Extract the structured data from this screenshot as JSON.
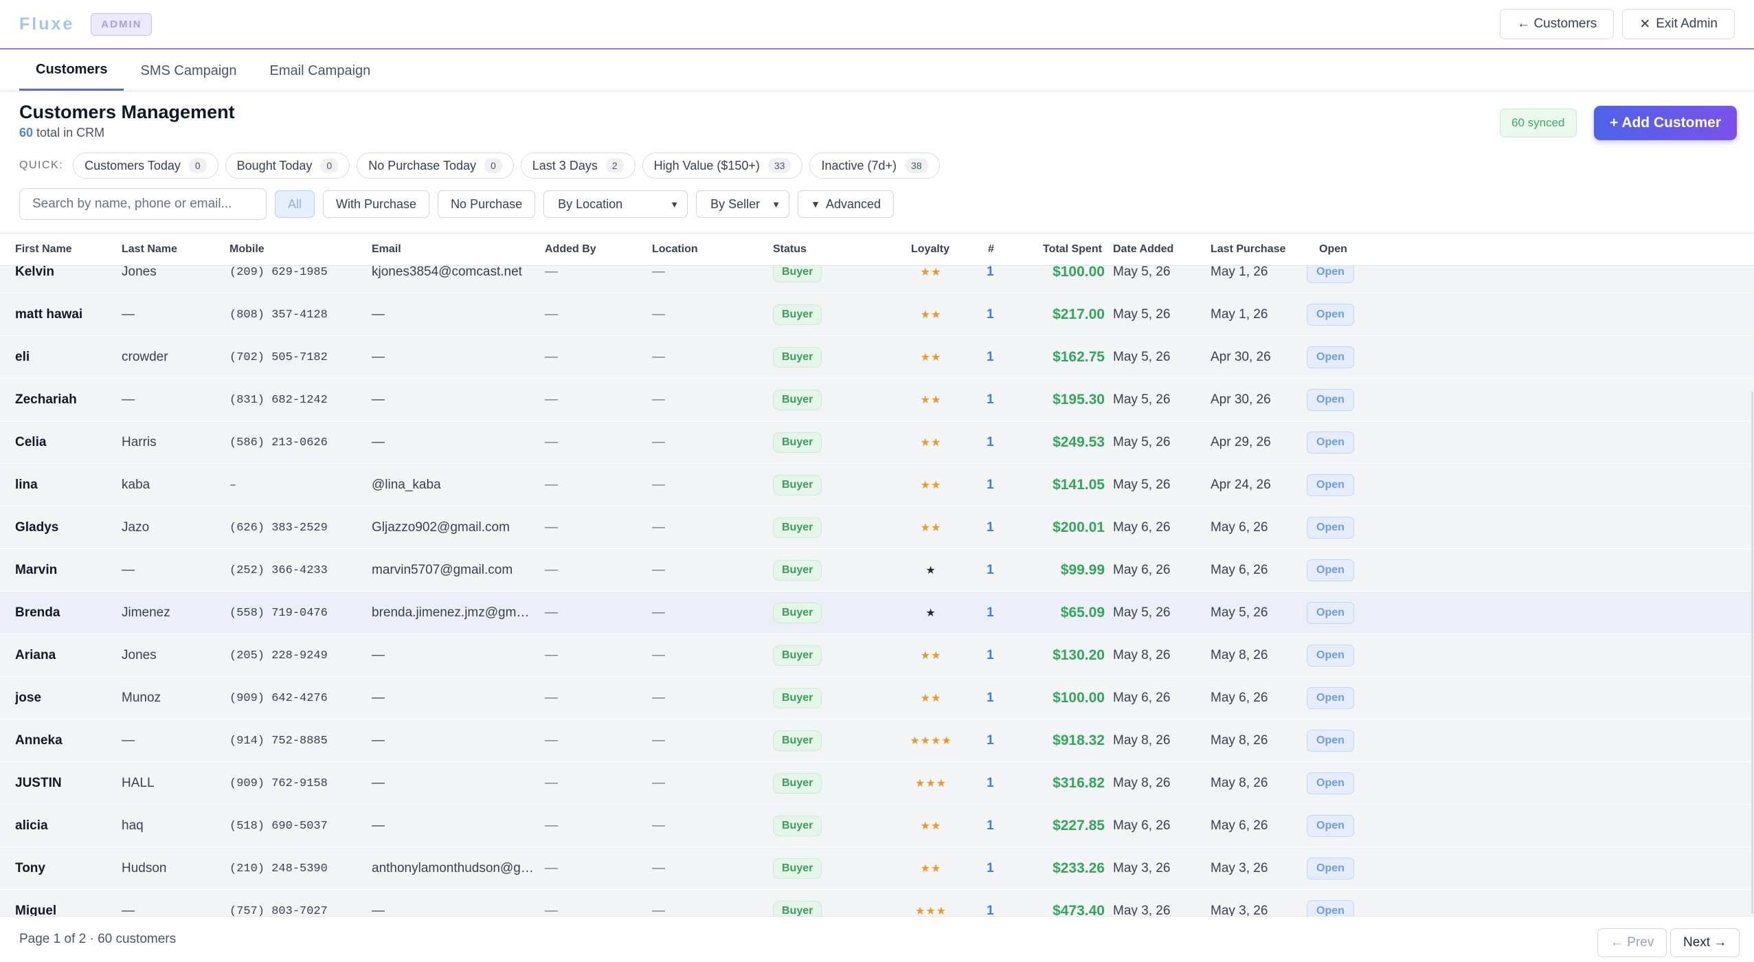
{
  "header": {
    "logo": "Fluxe",
    "badge": "ADMIN",
    "customers_btn": "← Customers",
    "exit_btn": "Exit Admin"
  },
  "tabs": [
    {
      "label": "Customers",
      "active": true
    },
    {
      "label": "SMS Campaign",
      "active": false
    },
    {
      "label": "Email Campaign",
      "active": false
    }
  ],
  "page": {
    "title": "Customers Management",
    "total_count": "60",
    "total_suffix": "total in CRM",
    "synced": "60 synced",
    "add_button": "+ Add Customer"
  },
  "quick": {
    "label": "QUICK:",
    "chips": [
      {
        "label": "Customers Today",
        "count": "0"
      },
      {
        "label": "Bought Today",
        "count": "0"
      },
      {
        "label": "No Purchase Today",
        "count": "0"
      },
      {
        "label": "Last 3 Days",
        "count": "2"
      },
      {
        "label": "High Value ($150+)",
        "count": "33"
      },
      {
        "label": "Inactive (7d+)",
        "count": "38"
      }
    ]
  },
  "filters": {
    "search_placeholder": "Search by name, phone or email...",
    "all": "All",
    "with_purchase": "With Purchase",
    "no_purchase": "No Purchase",
    "by_location": "By Location",
    "by_seller": "By Seller",
    "advanced": "Advanced"
  },
  "columns": {
    "first": "First Name",
    "last": "Last Name",
    "mobile": "Mobile",
    "email": "Email",
    "added_by": "Added By",
    "location": "Location",
    "status": "Status",
    "loyalty": "Loyalty",
    "num": "#",
    "total": "Total Spent",
    "date_added": "Date Added",
    "last_purchase": "Last Purchase",
    "open": "Open"
  },
  "rows": [
    {
      "first": "Kelvin",
      "last": "Jones",
      "mobile": "(209) 629-1985",
      "email": "kjones3854@comcast.net",
      "added_by": "—",
      "location": "—",
      "status": "Buyer",
      "loyalty": "★★",
      "num": "1",
      "total": "$100.00",
      "date_added": "May 5, 26",
      "last_purchase": "May 1, 26",
      "open": "Open"
    },
    {
      "first": "matt hawai",
      "last": "—",
      "mobile": "(808) 357-4128",
      "email": "—",
      "added_by": "—",
      "location": "—",
      "status": "Buyer",
      "loyalty": "★★",
      "num": "1",
      "total": "$217.00",
      "date_added": "May 5, 26",
      "last_purchase": "May 1, 26",
      "open": "Open"
    },
    {
      "first": "eli",
      "last": "crowder",
      "mobile": "(702) 505-7182",
      "email": "—",
      "added_by": "—",
      "location": "—",
      "status": "Buyer",
      "loyalty": "★★",
      "num": "1",
      "total": "$162.75",
      "date_added": "May 5, 26",
      "last_purchase": "Apr 30, 26",
      "open": "Open"
    },
    {
      "first": "Zechariah",
      "last": "—",
      "mobile": "(831) 682-1242",
      "email": "—",
      "added_by": "—",
      "location": "—",
      "status": "Buyer",
      "loyalty": "★★",
      "num": "1",
      "total": "$195.30",
      "date_added": "May 5, 26",
      "last_purchase": "Apr 30, 26",
      "open": "Open"
    },
    {
      "first": "Celia",
      "last": "Harris",
      "mobile": "(586) 213-0626",
      "email": "—",
      "added_by": "—",
      "location": "—",
      "status": "Buyer",
      "loyalty": "★★",
      "num": "1",
      "total": "$249.53",
      "date_added": "May 5, 26",
      "last_purchase": "Apr 29, 26",
      "open": "Open"
    },
    {
      "first": "lina",
      "last": "kaba",
      "mobile": "–",
      "email": "@lina_kaba",
      "added_by": "—",
      "location": "—",
      "status": "Buyer",
      "loyalty": "★★",
      "num": "1",
      "total": "$141.05",
      "date_added": "May 5, 26",
      "last_purchase": "Apr 24, 26",
      "open": "Open"
    },
    {
      "first": "Gladys",
      "last": "Jazo",
      "mobile": "(626) 383-2529",
      "email": "Gljazzo902@gmail.com",
      "added_by": "—",
      "location": "—",
      "status": "Buyer",
      "loyalty": "★★",
      "num": "1",
      "total": "$200.01",
      "date_added": "May 6, 26",
      "last_purchase": "May 6, 26",
      "open": "Open"
    },
    {
      "first": "Marvin",
      "last": "—",
      "mobile": "(252) 366-4233",
      "email": "marvin5707@gmail.com",
      "added_by": "—",
      "location": "—",
      "status": "Buyer",
      "loyalty": "★",
      "num": "1",
      "total": "$99.99",
      "date_added": "May 6, 26",
      "last_purchase": "May 6, 26",
      "open": "Open"
    },
    {
      "first": "Brenda",
      "last": "Jimenez",
      "mobile": "(558) 719-0476",
      "email": "brenda.jimenez.jmz@gmail.com",
      "added_by": "—",
      "location": "—",
      "status": "Buyer",
      "loyalty": "★",
      "num": "1",
      "total": "$65.09",
      "date_added": "May 5, 26",
      "last_purchase": "May 5, 26",
      "open": "Open"
    },
    {
      "first": "Ariana",
      "last": "Jones",
      "mobile": "(205) 228-9249",
      "email": "—",
      "added_by": "—",
      "location": "—",
      "status": "Buyer",
      "loyalty": "★★",
      "num": "1",
      "total": "$130.20",
      "date_added": "May 8, 26",
      "last_purchase": "May 8, 26",
      "open": "Open"
    },
    {
      "first": "jose",
      "last": "Munoz",
      "mobile": "(909) 642-4276",
      "email": "—",
      "added_by": "—",
      "location": "—",
      "status": "Buyer",
      "loyalty": "★★",
      "num": "1",
      "total": "$100.00",
      "date_added": "May 6, 26",
      "last_purchase": "May 6, 26",
      "open": "Open"
    },
    {
      "first": "Anneka",
      "last": "—",
      "mobile": "(914) 752-8885",
      "email": "—",
      "added_by": "—",
      "location": "—",
      "status": "Buyer",
      "loyalty": "★★★★",
      "num": "1",
      "total": "$918.32",
      "date_added": "May 8, 26",
      "last_purchase": "May 8, 26",
      "open": "Open"
    },
    {
      "first": "JUSTIN",
      "last": "HALL",
      "mobile": "(909) 762-9158",
      "email": "—",
      "added_by": "—",
      "location": "—",
      "status": "Buyer",
      "loyalty": "★★★",
      "num": "1",
      "total": "$316.82",
      "date_added": "May 8, 26",
      "last_purchase": "May 8, 26",
      "open": "Open"
    },
    {
      "first": "alicia",
      "last": "haq",
      "mobile": "(518) 690-5037",
      "email": "—",
      "added_by": "—",
      "location": "—",
      "status": "Buyer",
      "loyalty": "★★",
      "num": "1",
      "total": "$227.85",
      "date_added": "May 6, 26",
      "last_purchase": "May 6, 26",
      "open": "Open"
    },
    {
      "first": "Tony",
      "last": "Hudson",
      "mobile": "(210) 248-5390",
      "email": "anthonylamonthudson@gmail.com",
      "added_by": "—",
      "location": "—",
      "status": "Buyer",
      "loyalty": "★★",
      "num": "1",
      "total": "$233.26",
      "date_added": "May 3, 26",
      "last_purchase": "May 3, 26",
      "open": "Open"
    },
    {
      "first": "Miguel",
      "last": "—",
      "mobile": "(757) 803-7027",
      "email": "—",
      "added_by": "—",
      "location": "—",
      "status": "Buyer",
      "loyalty": "★★★",
      "num": "1",
      "total": "$473.40",
      "date_added": "May 3, 26",
      "last_purchase": "May 3, 26",
      "open": "Open"
    }
  ],
  "footer": {
    "page_info": "Page 1 of 2 · 60 customers",
    "prev": "← Prev",
    "next": "Next →"
  }
}
